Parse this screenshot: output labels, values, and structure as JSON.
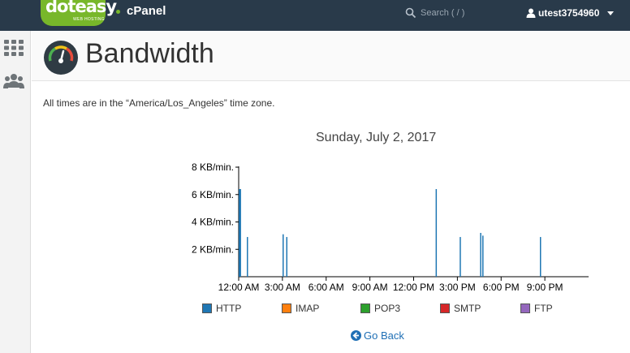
{
  "topbar": {
    "logo_text": "doteasy",
    "logo_sub": "WEB HOSTING",
    "product": "cPanel",
    "search_placeholder": "Search ( / )",
    "username": "utest3754960"
  },
  "siderail": {
    "items": [
      "grid-icon",
      "users-icon"
    ]
  },
  "header": {
    "title": "Bandwidth",
    "icon": "gauge-icon"
  },
  "timezone_note": "All times are in the “America/Los_Angeles” time zone.",
  "chart_data": {
    "type": "bar",
    "title": "Sunday, July 2, 2017",
    "y_ticks": [
      "8 KB/min.",
      "6 KB/min.",
      "4 KB/min.",
      "2 KB/min."
    ],
    "y_tick_values": [
      8,
      6,
      4,
      2
    ],
    "ylim": [
      0,
      8
    ],
    "y_unit": "KB/min.",
    "x_ticks": [
      "12:00 AM",
      "3:00 AM",
      "6:00 AM",
      "9:00 AM",
      "12:00 PM",
      "3:00 PM",
      "6:00 PM",
      "9:00 PM"
    ],
    "x_tick_hours": [
      0,
      3,
      6,
      9,
      12,
      15,
      18,
      21
    ],
    "xlim_hours": [
      0,
      24
    ],
    "series": [
      {
        "name": "HTTP",
        "color": "#1f77b4",
        "points": [
          {
            "hour": 0.05,
            "value": 6.4
          },
          {
            "hour": 0.12,
            "value": 6.4
          },
          {
            "hour": 0.6,
            "value": 2.9
          },
          {
            "hour": 3.05,
            "value": 3.1
          },
          {
            "hour": 3.3,
            "value": 2.9
          },
          {
            "hour": 13.55,
            "value": 6.4
          },
          {
            "hour": 15.2,
            "value": 2.9
          },
          {
            "hour": 16.6,
            "value": 3.2
          },
          {
            "hour": 16.75,
            "value": 3.0
          },
          {
            "hour": 20.7,
            "value": 2.9
          }
        ]
      },
      {
        "name": "IMAP",
        "color": "#ff7f0e",
        "points": []
      },
      {
        "name": "POP3",
        "color": "#2ca02c",
        "points": []
      },
      {
        "name": "SMTP",
        "color": "#d62728",
        "points": []
      },
      {
        "name": "FTP",
        "color": "#9467bd",
        "points": []
      }
    ],
    "legend_placement": "bottom",
    "grid": false
  },
  "go_back_label": "Go Back"
}
